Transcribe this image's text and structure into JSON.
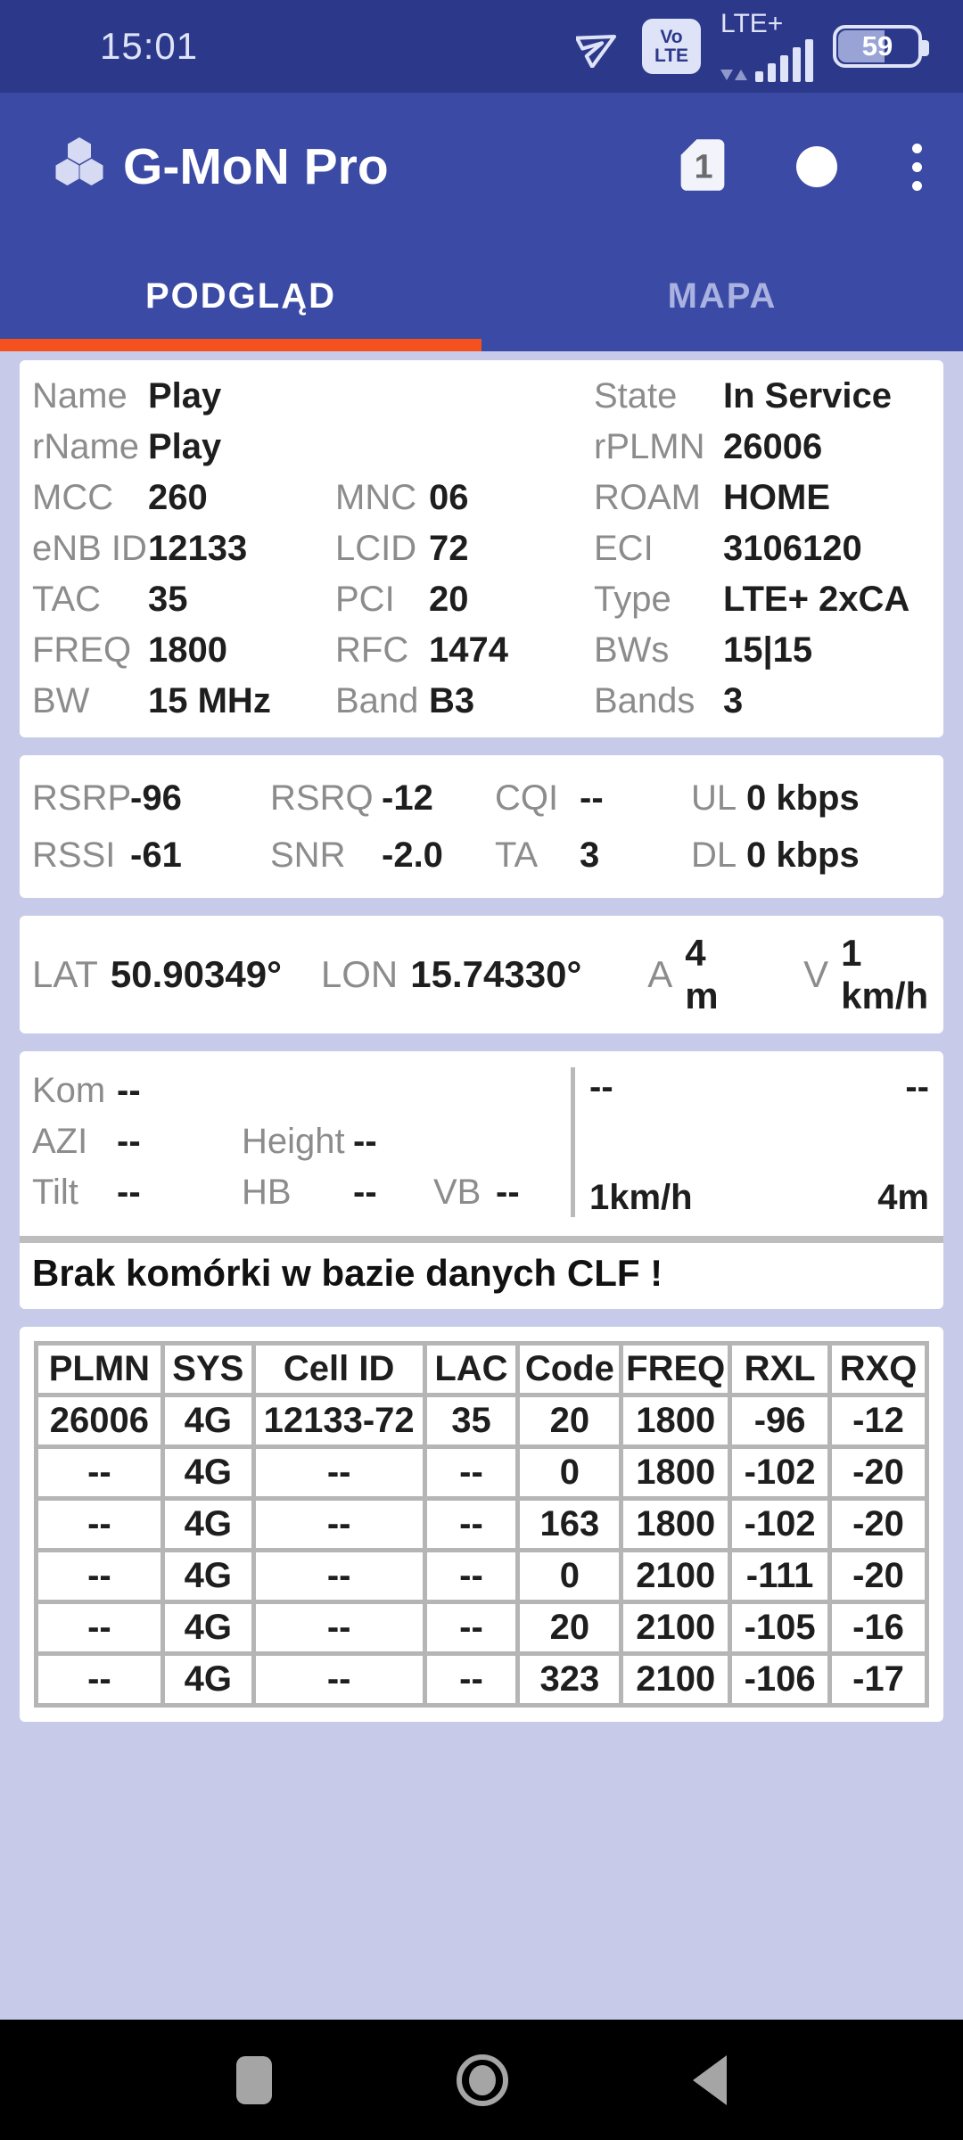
{
  "status_bar": {
    "time": "15:01",
    "network_label": "LTE+",
    "battery_percent": "59"
  },
  "app_bar": {
    "title": "G-MoN Pro",
    "sim_slot": "1"
  },
  "tabs": {
    "items": [
      {
        "label": "PODGLĄD",
        "active": true
      },
      {
        "label": "MAPA",
        "active": false
      }
    ],
    "indicator_color": "#f4511e"
  },
  "info_panel": {
    "rows": [
      {
        "l1": "Name",
        "v1": "Play",
        "l2": "",
        "v2": "",
        "l3": "State",
        "v3": "In Service"
      },
      {
        "l1": "rName",
        "v1": "Play",
        "l2": "",
        "v2": "",
        "l3": "rPLMN",
        "v3": "26006"
      },
      {
        "l1": "MCC",
        "v1": "260",
        "l2": "MNC",
        "v2": "06",
        "l3": "ROAM",
        "v3": "HOME"
      },
      {
        "l1": "eNB ID",
        "v1": "12133",
        "l2": "LCID",
        "v2": "72",
        "l3": "ECI",
        "v3": "3106120"
      },
      {
        "l1": "TAC",
        "v1": "35",
        "l2": "PCI",
        "v2": "20",
        "l3": "Type",
        "v3": "LTE+ 2xCA"
      },
      {
        "l1": "FREQ",
        "v1": "1800",
        "l2": "RFC",
        "v2": "1474",
        "l3": "BWs",
        "v3": "15|15"
      },
      {
        "l1": "BW",
        "v1": "15 MHz",
        "l2": "Band",
        "v2": "B3",
        "l3": "Bands",
        "v3": "3"
      }
    ]
  },
  "signal_panel": {
    "rows": [
      [
        {
          "label": "RSRP",
          "value": "-96"
        },
        {
          "label": "RSRQ",
          "value": "-12"
        },
        {
          "label": "CQI",
          "value": "--"
        },
        {
          "label": "UL",
          "value": "0 kbps"
        }
      ],
      [
        {
          "label": "RSSI",
          "value": "-61"
        },
        {
          "label": "SNR",
          "value": "-2.0"
        },
        {
          "label": "TA",
          "value": "3"
        },
        {
          "label": "DL",
          "value": "0 kbps"
        }
      ]
    ]
  },
  "location_panel": {
    "items": [
      {
        "label": "LAT",
        "value": "50.90349°"
      },
      {
        "label": "LON",
        "value": "15.74330°"
      },
      {
        "label": "A",
        "value": "4 m"
      },
      {
        "label": "V",
        "value": "1 km/h"
      }
    ]
  },
  "cell_info_panel": {
    "rows": [
      [
        {
          "label": "Kom",
          "value": "--"
        }
      ],
      [
        {
          "label": "AZI",
          "value": "--"
        },
        {
          "label": "Height",
          "value": "--"
        }
      ],
      [
        {
          "label": "Tilt",
          "value": "--"
        },
        {
          "label": "HB",
          "value": "--"
        },
        {
          "label": "VB",
          "value": "--"
        }
      ]
    ],
    "graph": {
      "top_left": "--",
      "top_right": "--",
      "bottom_left": "1km/h",
      "bottom_right": "4m"
    },
    "warning": "Brak komórki w bazie danych CLF !"
  },
  "neighbor_table": {
    "headers": [
      "PLMN",
      "SYS",
      "Cell ID",
      "LAC",
      "Code",
      "FREQ",
      "RXL",
      "RXQ"
    ],
    "col_widths_percent": [
      14.2,
      10.2,
      19.2,
      10.5,
      11.6,
      12.2,
      11.2,
      10.9
    ],
    "rows": [
      [
        "26006",
        "4G",
        "12133-72",
        "35",
        "20",
        "1800",
        "-96",
        "-12"
      ],
      [
        "--",
        "4G",
        "--",
        "--",
        "0",
        "1800",
        "-102",
        "-20"
      ],
      [
        "--",
        "4G",
        "--",
        "--",
        "163",
        "1800",
        "-102",
        "-20"
      ],
      [
        "--",
        "4G",
        "--",
        "--",
        "0",
        "2100",
        "-111",
        "-20"
      ],
      [
        "--",
        "4G",
        "--",
        "--",
        "20",
        "2100",
        "-105",
        "-16"
      ],
      [
        "--",
        "4G",
        "--",
        "--",
        "323",
        "2100",
        "-106",
        "-17"
      ]
    ]
  },
  "colors": {
    "status_bar": "#2c398b",
    "app_bar": "#3b4aa4",
    "accent": "#f4511e",
    "page_bg": "#c7cbe9",
    "label_gray": "#8c8c8c",
    "value_dark": "#1e1e1e"
  }
}
